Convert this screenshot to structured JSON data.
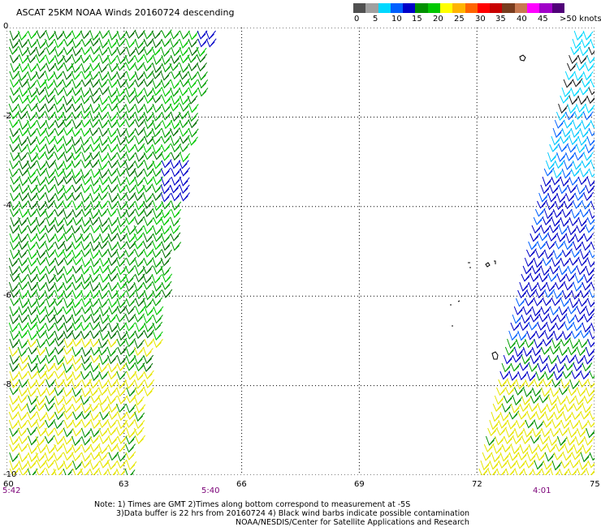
{
  "title": "ASCAT 25KM NOAA Winds 20160724 descending",
  "legend": {
    "colors": [
      "#505050",
      "#a0a0a0",
      "#00d8ff",
      "#0060ff",
      "#0000c8",
      "#009000",
      "#00c800",
      "#ffff00",
      "#ffb400",
      "#ff6400",
      "#ff0000",
      "#c80000",
      "#783c1e",
      "#c87850",
      "#ff00ff",
      "#a000c8",
      "#500078"
    ],
    "labels": [
      "0",
      "5",
      "10",
      "15",
      "20",
      "25",
      "30",
      "35",
      "40",
      "45",
      ">50 knots"
    ]
  },
  "map": {
    "lat_labels": [
      "0",
      "-2",
      "-4",
      "-6",
      "-8",
      "-10"
    ],
    "lon_labels": [
      "60",
      "63",
      "66",
      "69",
      "72",
      "75"
    ],
    "times": [
      "5:42",
      "5:40",
      "4:01"
    ],
    "lat_range": [
      -10,
      0
    ],
    "lon_range": [
      60,
      75
    ]
  },
  "notes": {
    "line1": "Note: 1) Times are GMT 2)Times along bottom correspond to measurement at -5S",
    "line2": "3)Data buffer is 22 hrs from 20160724 4) Black wind barbs indicate possible contamination",
    "line3": "NOAA/NESDIS/Center for Satellite Applications and Research"
  }
}
